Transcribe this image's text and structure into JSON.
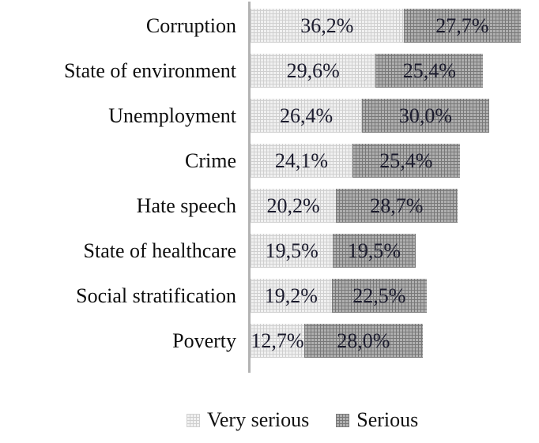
{
  "chart_data": {
    "type": "bar",
    "orientation": "horizontal",
    "stacked": true,
    "title": "",
    "xlabel": "",
    "ylabel": "",
    "grid": false,
    "legend_position": "bottom",
    "xlim": [
      0,
      66
    ],
    "categories": [
      "Corruption",
      "State of environment",
      "Unemployment",
      "Crime",
      "Hate speech",
      "State of healthcare",
      "Social stratification",
      "Poverty"
    ],
    "series": [
      {
        "name": "Very serious",
        "values": [
          36.2,
          29.6,
          26.4,
          24.1,
          20.2,
          19.5,
          19.2,
          12.7
        ],
        "labels": [
          "36,2%",
          "29,6%",
          "26,4%",
          "24,1%",
          "20,2%",
          "19,5%",
          "19,2%",
          "12,7%"
        ]
      },
      {
        "name": "Serious",
        "values": [
          27.7,
          25.4,
          30.0,
          25.4,
          28.7,
          19.5,
          22.5,
          28.0
        ],
        "labels": [
          "27,7%",
          "25,4%",
          "30,0%",
          "25,4%",
          "28,7%",
          "19,5%",
          "22,5%",
          "28,0%"
        ]
      }
    ]
  },
  "legend": {
    "items": [
      {
        "label": "Very serious"
      },
      {
        "label": "Serious"
      }
    ]
  },
  "colors": {
    "very_serious_fill": "#e2e2e2",
    "serious_fill": "#9b9b9b",
    "axis_line": "#b3b3b3",
    "value_text": "#1c1c2e",
    "category_text": "#0e0e0e",
    "background": "#ffffff"
  }
}
